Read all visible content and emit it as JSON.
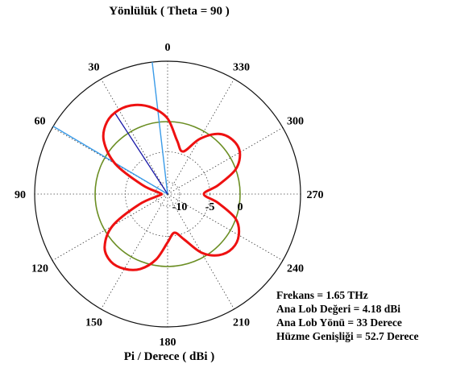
{
  "chart_data": {
    "type": "polar",
    "title": "Yönlülük ( Theta = 90 )",
    "xlabel": "Pi / Derece ( dBi )",
    "angle_ticks": [
      "0",
      "330",
      "300",
      "270",
      "240",
      "210",
      "180",
      "150",
      "120",
      "90",
      "60",
      "30"
    ],
    "angle_tick_degrees": [
      0,
      330,
      300,
      270,
      240,
      210,
      180,
      150,
      120,
      90,
      60,
      30
    ],
    "angle_direction": "counterclockwise",
    "zero_location": "top",
    "radial_range": [
      -12,
      10
    ],
    "radial_ticks": [
      -10,
      -5,
      0
    ],
    "radial_tick_labels": [
      "-10",
      "-5",
      "0"
    ],
    "reference_circle_dbi": 0,
    "reference_color": "#6b8e23",
    "pattern_color": "#ee1111",
    "main_lobe_line_color": "#1a1aa8",
    "beamwidth_line_color": "#3a9be8",
    "main_lobe_direction_deg": 33,
    "beamwidth_edges_deg": [
      6.65,
      59.35
    ],
    "pattern": {
      "phi_deg": [
        0,
        10,
        20,
        30,
        40,
        50,
        60,
        70,
        80,
        90,
        100,
        110,
        120,
        130,
        140,
        150,
        160,
        170,
        180,
        190,
        200,
        210,
        220,
        230,
        240,
        250,
        260,
        270,
        280,
        290,
        300,
        310,
        320,
        330,
        340,
        350,
        360
      ],
      "dbi": [
        0.5,
        2.5,
        3.7,
        4.1,
        3.6,
        1.8,
        -2.0,
        -7.5,
        -10.5,
        -11.0,
        -10.5,
        -7.0,
        -1.5,
        1.6,
        2.6,
        2.3,
        1.2,
        -1.0,
        -4.0,
        -5.5,
        -4.0,
        -0.8,
        1.2,
        2.0,
        1.6,
        0.0,
        -3.5,
        -6.0,
        -3.5,
        0.0,
        1.8,
        2.0,
        1.0,
        -1.5,
        -4.5,
        -3.0,
        0.5
      ]
    }
  },
  "info": {
    "frequency": "Frekans = 1.65 THz",
    "main_lobe_value": "Ana Lob Değeri = 4.18 dBi",
    "main_lobe_direction": "Ana Lob Yönü = 33 Derece",
    "beamwidth": "Hüzme Genişliği = 52.7 Derece"
  }
}
